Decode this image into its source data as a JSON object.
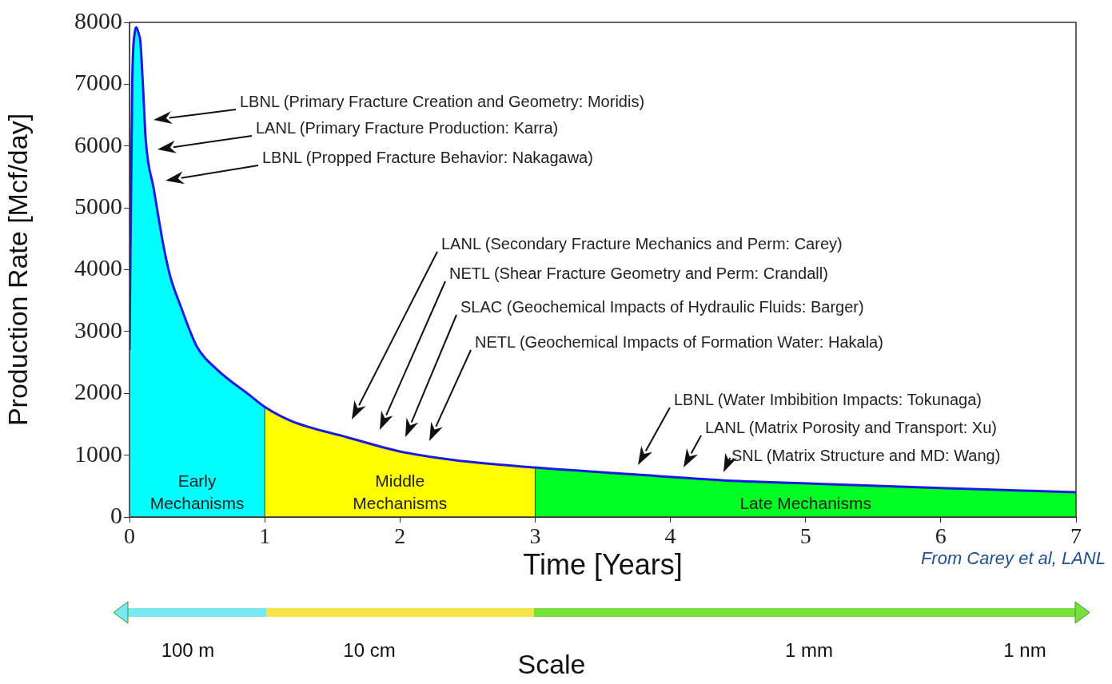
{
  "chart_data": {
    "type": "area",
    "xlabel": "Time [Years]",
    "ylabel": "Production Rate [Mcf/day]",
    "xlim": [
      0,
      7
    ],
    "xticks": [
      0,
      1,
      2,
      3,
      4,
      5,
      6,
      7
    ],
    "ylim": [
      0,
      8000
    ],
    "yticks": [
      0,
      1000,
      2000,
      3000,
      4000,
      5000,
      6000,
      7000,
      8000
    ],
    "grid": false,
    "legend": false,
    "series": [
      {
        "name": "Early Mechanisms",
        "color": "#00ffff",
        "x": [
          0,
          0.02,
          0.04,
          0.05,
          0.07,
          0.08,
          0.1,
          0.12,
          0.18,
          0.25,
          0.3,
          0.38,
          0.5,
          0.64,
          0.9,
          1.0
        ],
        "values": [
          2700,
          7000,
          7850,
          7920,
          7800,
          7700,
          6950,
          6100,
          5300,
          4400,
          3900,
          3400,
          2750,
          2400,
          1950,
          1780
        ]
      },
      {
        "name": "Middle Mechanisms",
        "color": "#ffff00",
        "x": [
          1.0,
          1.2,
          1.61,
          2.0,
          2.4,
          3.0
        ],
        "values": [
          1780,
          1550,
          1290,
          1060,
          920,
          800
        ]
      },
      {
        "name": "Late Mechanisms",
        "color": "#00ff22",
        "x": [
          3.0,
          3.72,
          4.51,
          4.93,
          6.0,
          7.0
        ],
        "values": [
          800,
          690,
          580,
          550,
          470,
          400
        ]
      },
      {
        "type": "line",
        "color": "#1a1ae6",
        "x": [
          0,
          0.02,
          0.04,
          0.05,
          0.07,
          0.08,
          0.1,
          0.12,
          0.18,
          0.25,
          0.3,
          0.38,
          0.5,
          0.64,
          0.9,
          1.0,
          1.2,
          1.61,
          2.0,
          2.4,
          3.0,
          3.72,
          4.51,
          4.93,
          6.0,
          7.0
        ],
        "values": [
          2700,
          7000,
          7850,
          7920,
          7800,
          7700,
          6950,
          6100,
          5300,
          4400,
          3900,
          3400,
          2750,
          2400,
          1950,
          1780,
          1550,
          1290,
          1060,
          920,
          800,
          690,
          580,
          550,
          470,
          400
        ]
      }
    ],
    "annotations": [
      "LBNL (Primary Fracture Creation and Geometry: Moridis)",
      "LANL (Primary Fracture Production: Karra)",
      "LBNL (Propped Fracture Behavior: Nakagawa)",
      "LANL (Secondary Fracture Mechanics and Perm: Carey)",
      "NETL (Shear Fracture Geometry and Perm: Crandall)",
      "SLAC (Geochemical Impacts of Hydraulic Fluids: Barger)",
      "NETL (Geochemical Impacts of Formation Water: Hakala)",
      "LBNL (Water Imbibition Impacts: Tokunaga)",
      "LANL (Matrix Porosity and Transport: Xu)",
      "SNL (Matrix Structure and MD: Wang)",
      "From Carey et al, LANL",
      "100 m",
      "10 cm",
      "1 mm",
      "1 nm",
      "Scale"
    ]
  }
}
